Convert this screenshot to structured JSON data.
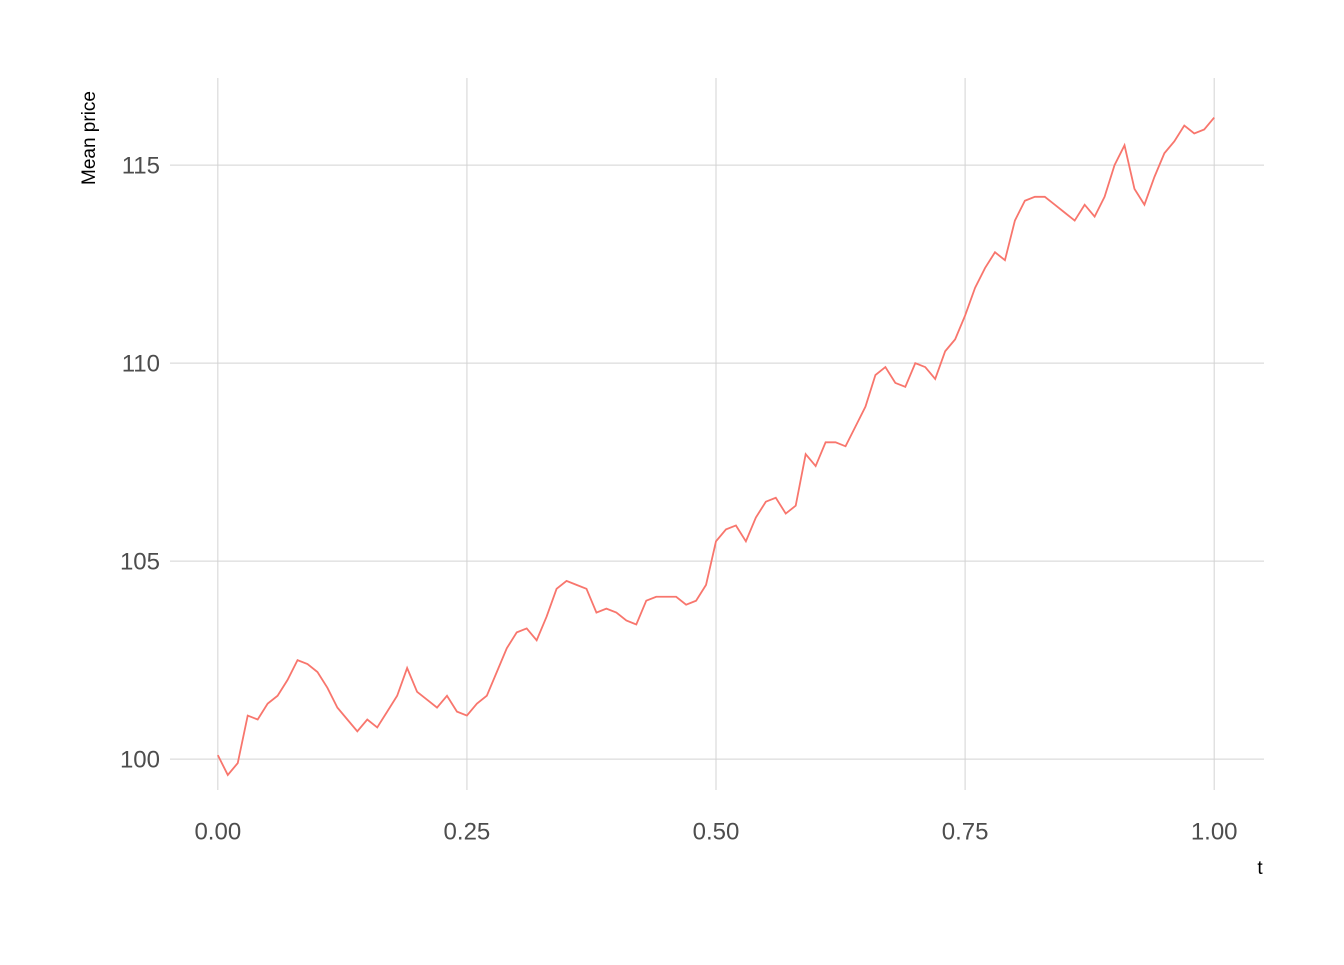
{
  "chart_data": {
    "type": "line",
    "x_label": "t",
    "y_label": "Mean price",
    "x": [
      0,
      0.01,
      0.02,
      0.03,
      0.04,
      0.05,
      0.06,
      0.07,
      0.08,
      0.09,
      0.1,
      0.11,
      0.12,
      0.13,
      0.14,
      0.15,
      0.16,
      0.17,
      0.18,
      0.19,
      0.2,
      0.21,
      0.22,
      0.23,
      0.24,
      0.25,
      0.26,
      0.27,
      0.28,
      0.29,
      0.3,
      0.31,
      0.32,
      0.33,
      0.34,
      0.35,
      0.36,
      0.37,
      0.38,
      0.39,
      0.4,
      0.41,
      0.42,
      0.43,
      0.44,
      0.45,
      0.46,
      0.47,
      0.48,
      0.49,
      0.5,
      0.51,
      0.52,
      0.53,
      0.54,
      0.55,
      0.56,
      0.57,
      0.58,
      0.59,
      0.6,
      0.61,
      0.62,
      0.63,
      0.64,
      0.65,
      0.66,
      0.67,
      0.68,
      0.69,
      0.7,
      0.71,
      0.72,
      0.73,
      0.74,
      0.75,
      0.76,
      0.77,
      0.78,
      0.79,
      0.8,
      0.81,
      0.82,
      0.83,
      0.84,
      0.85,
      0.86,
      0.87,
      0.88,
      0.89,
      0.9,
      0.91,
      0.92,
      0.93,
      0.94,
      0.95,
      0.96,
      0.97,
      0.98,
      0.99,
      1
    ],
    "series": [
      {
        "color": "#F8766D",
        "values": [
          100.1,
          99.6,
          99.9,
          101.1,
          101.0,
          101.4,
          101.6,
          102.0,
          102.5,
          102.4,
          102.2,
          101.8,
          101.3,
          101.0,
          100.7,
          101.0,
          100.8,
          101.2,
          101.6,
          102.3,
          101.7,
          101.5,
          101.3,
          101.6,
          101.2,
          101.1,
          101.4,
          101.6,
          102.2,
          102.8,
          103.2,
          103.3,
          103.0,
          103.6,
          104.3,
          104.5,
          104.4,
          104.3,
          103.7,
          103.8,
          103.7,
          103.5,
          103.4,
          104.0,
          104.1,
          104.1,
          104.1,
          103.9,
          104.0,
          104.4,
          105.5,
          105.8,
          105.9,
          105.5,
          106.1,
          106.5,
          106.6,
          106.2,
          106.4,
          107.7,
          107.4,
          108.0,
          108.0,
          107.9,
          108.4,
          108.9,
          109.7,
          109.9,
          109.5,
          109.4,
          110.0,
          109.9,
          109.6,
          110.3,
          110.6,
          111.2,
          111.9,
          112.4,
          112.8,
          112.6,
          113.6,
          114.1,
          114.2,
          114.2,
          114.0,
          113.8,
          113.6,
          114.0,
          113.7,
          114.2,
          115.0,
          115.5,
          114.4,
          114.0,
          114.7,
          115.3,
          115.6,
          116.0,
          115.8,
          115.9,
          116.2
        ]
      }
    ],
    "xlim": [
      -0.048,
      1.05
    ],
    "ylim": [
      99.22,
      117.2
    ],
    "xticks": [
      {
        "value": 0,
        "label": "0.00"
      },
      {
        "value": 0.25,
        "label": "0.25"
      },
      {
        "value": 0.5,
        "label": "0.50"
      },
      {
        "value": 0.75,
        "label": "0.75"
      },
      {
        "value": 1,
        "label": "1.00"
      }
    ],
    "yticks": [
      100,
      105,
      110,
      115
    ],
    "grid": true
  }
}
